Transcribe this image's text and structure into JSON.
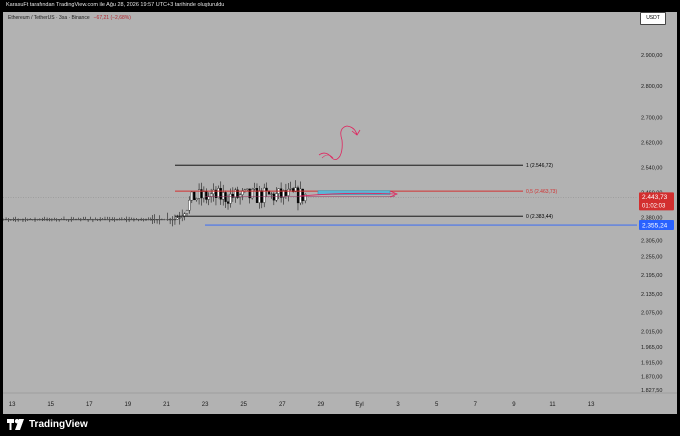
{
  "header": {
    "published_by": "KarasuFt tarafından TradingView.com ile Ağu 28, 2026 19:57 UTC+3 tarihinde oluşturuldu"
  },
  "legend": {
    "title": "Ethereum / TetherUS · 3sa · Binance",
    "change": "−67,21 (−2,68%)"
  },
  "currency_button": "USDT",
  "price_axis": {
    "ticks": [
      "2.900,00",
      "2.800,00",
      "2.700,00",
      "2.620,00",
      "2.540,00",
      "2.460,00",
      "2.380,00",
      "2.305,00",
      "2.255,00",
      "2.195,00",
      "2.135,00",
      "2.075,00",
      "2.015,00",
      "1.965,00",
      "1.915,00",
      "1.870,00",
      "1.827,50"
    ]
  },
  "time_axis": {
    "ticks": [
      "13",
      "15",
      "17",
      "19",
      "21",
      "23",
      "25",
      "27",
      "29",
      "Eyl",
      "3",
      "5",
      "7",
      "9",
      "11",
      "13"
    ]
  },
  "price_labels": {
    "last_price": "2.443,73",
    "countdown": "01:02:03",
    "marker_price": "2.355,24"
  },
  "fib_levels": [
    {
      "ratio": "1",
      "value": 2546.72,
      "label": "1 (2.546,72)",
      "color": "#000000"
    },
    {
      "ratio": "0.5",
      "value": 2463.73,
      "label": "0,5 (2.463,73)",
      "color": "#d32f2f"
    },
    {
      "ratio": "0",
      "value": 2383.44,
      "label": "0 (2.383,44)",
      "color": "#000000"
    }
  ],
  "horizontal_line": {
    "value": 2355.24,
    "color": "#2962ff"
  },
  "colors": {
    "background": "#b2b2b2",
    "candle_up": "#ffffff",
    "candle_down": "#000000",
    "annotation": "#e0245e",
    "price_badge": "#d32f2f",
    "blue_badge": "#2962ff",
    "zone": "#5bb5d6"
  },
  "chart_data": {
    "type": "candlestick",
    "symbol": "Ethereum / TetherUS",
    "interval": "3sa",
    "exchange": "Binance",
    "candles_per_day": 8,
    "x_start": "12",
    "ylim": [
      1827.5,
      2960
    ],
    "segments": [
      {
        "from_day": 0,
        "to_day": 8.2,
        "start": 1900,
        "end": 1905,
        "vol": 10
      },
      {
        "from_day": 8.2,
        "to_day": 9.0,
        "start": 1905,
        "end": 2340,
        "vol": 20
      },
      {
        "from_day": 9.0,
        "to_day": 10.5,
        "start": 2340,
        "end": 2445,
        "vol": 25
      },
      {
        "from_day": 10.5,
        "to_day": 16.3,
        "start": 2445,
        "end": 2450,
        "vol": 28
      }
    ],
    "last_close": 2443.73,
    "range_high": 2546.72,
    "range_low": 2383.44
  },
  "footer": {
    "brand": "TradingView"
  }
}
